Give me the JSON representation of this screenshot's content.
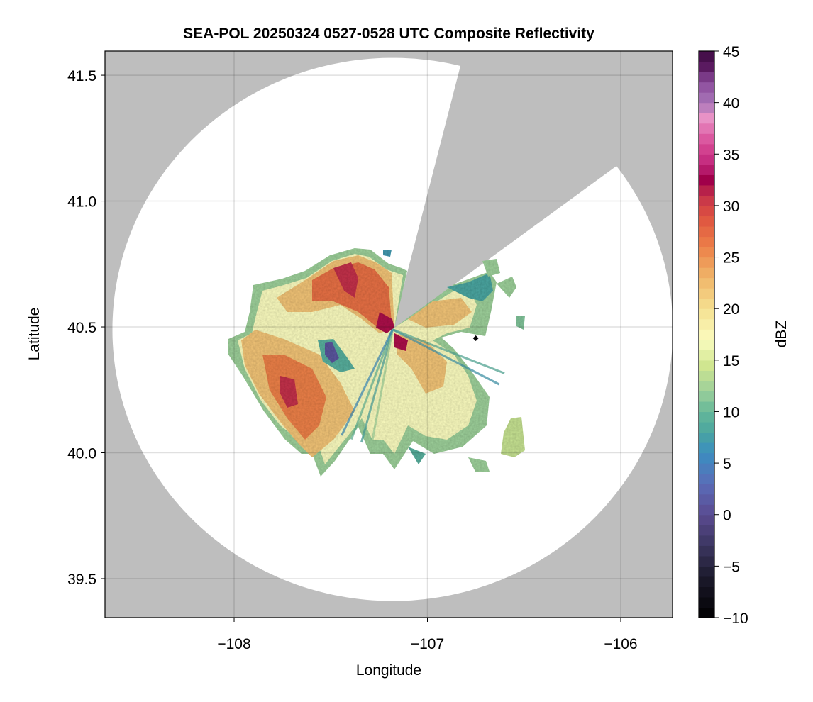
{
  "chart_data": {
    "type": "heatmap",
    "title": "SEA-POL 20250324 0527-0528 UTC Composite Reflectivity",
    "xlabel": "Longitude",
    "ylabel": "Latitude",
    "xlim": [
      -108.668,
      -105.732
    ],
    "ylim": [
      39.345,
      41.596
    ],
    "xticks": [
      -108,
      -107,
      -106
    ],
    "xtick_labels": [
      "−108",
      "−107",
      "−106"
    ],
    "yticks": [
      39.5,
      40.0,
      40.5,
      41.0,
      41.5
    ],
    "ytick_labels": [
      "39.5",
      "40.0",
      "40.5",
      "41.0",
      "41.5"
    ],
    "grid": true,
    "background_color": "#bebebe",
    "coverage_color": "#ffffff",
    "radar_site": {
      "lon": -107.18,
      "lat": 40.49
    },
    "marker": {
      "lon": -106.75,
      "lat": 40.455,
      "shape": "diamond",
      "color": "#000000"
    },
    "blocked_sector_deg": [
      14,
      53
    ],
    "colorbar": {
      "label": "dBZ",
      "range": [
        -10,
        45
      ],
      "ticks": [
        -10,
        -5,
        0,
        5,
        10,
        15,
        20,
        25,
        30,
        35,
        40,
        45
      ],
      "tick_labels": [
        "−10",
        "−5",
        "0",
        "5",
        "10",
        "15",
        "20",
        "25",
        "30",
        "35",
        "40",
        "45"
      ],
      "stops": [
        [
          -10,
          "#000000"
        ],
        [
          -6,
          "#1c1a2c"
        ],
        [
          -3,
          "#3b3560"
        ],
        [
          0,
          "#5a4a90"
        ],
        [
          3,
          "#5a6cb8"
        ],
        [
          6,
          "#3b8ec0"
        ],
        [
          8,
          "#4aa5a0"
        ],
        [
          10,
          "#65b899"
        ],
        [
          12,
          "#9dd09a"
        ],
        [
          14.5,
          "#d0e690"
        ],
        [
          17,
          "#fbfcbf"
        ],
        [
          20,
          "#f5e090"
        ],
        [
          23,
          "#f0b66a"
        ],
        [
          26,
          "#ec8048"
        ],
        [
          29,
          "#de5140"
        ],
        [
          31,
          "#c3314a"
        ],
        [
          32.5,
          "#a0004a"
        ],
        [
          34,
          "#c0257a"
        ],
        [
          36,
          "#d84a96"
        ],
        [
          38.5,
          "#e892c6"
        ],
        [
          40,
          "#a876b8"
        ],
        [
          42,
          "#8a4a9a"
        ],
        [
          43.5,
          "#5a1a60"
        ],
        [
          45,
          "#3c0a40"
        ]
      ]
    }
  }
}
